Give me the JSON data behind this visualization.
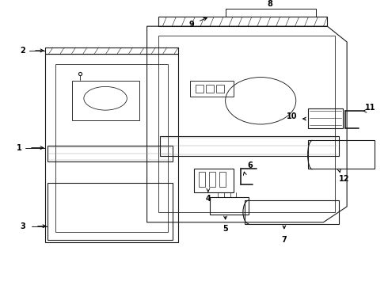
{
  "bg_color": "#ffffff",
  "lc": "#1a1a1a",
  "lw": 0.8,
  "fs": 7.0
}
